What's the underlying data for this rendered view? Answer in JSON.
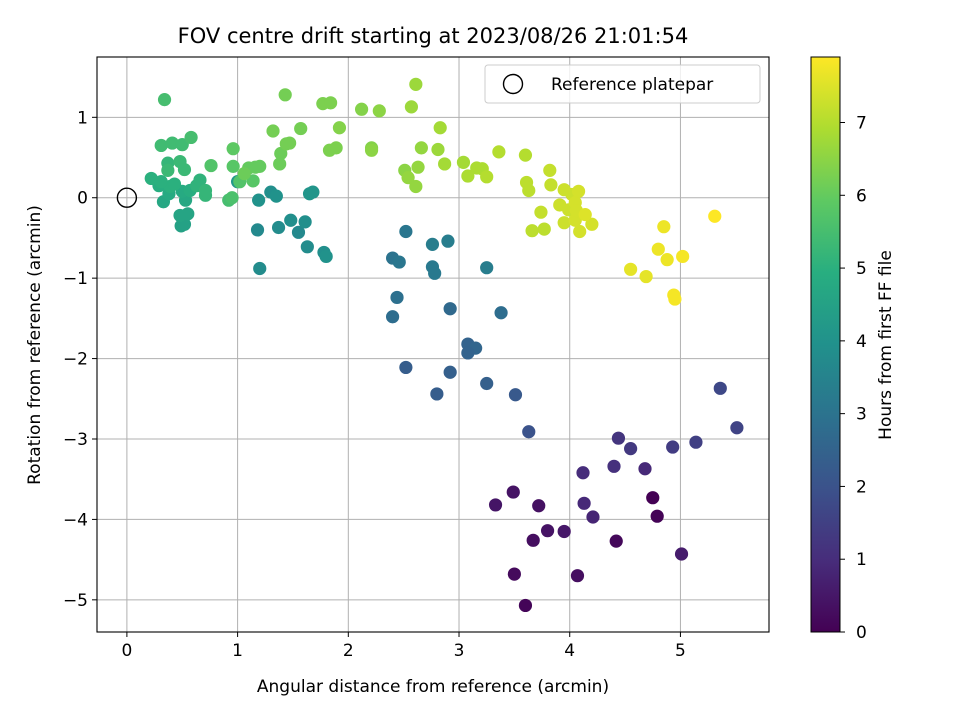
{
  "chart_data": {
    "type": "scatter",
    "title": "FOV centre drift starting at 2023/08/26 21:01:54",
    "xlabel": "Angular distance from reference (arcmin)",
    "ylabel": "Rotation from reference (arcmin)",
    "xlim": [
      -0.27,
      5.8
    ],
    "ylim": [
      -5.4,
      1.75
    ],
    "xticks": [
      "0",
      "1",
      "2",
      "3",
      "4",
      "5"
    ],
    "yticks": [
      "1",
      "0",
      "−1",
      "−2",
      "−3",
      "−4",
      "−5"
    ],
    "grid": true,
    "legend": {
      "position": "top-right",
      "entries": [
        "Reference platepar"
      ]
    },
    "reference_point": {
      "x": 0,
      "y": 0
    },
    "colorbar": {
      "label": "Hours from first FF file",
      "colormap": "viridis",
      "range": [
        0,
        7.9
      ],
      "ticks": [
        "0",
        "1",
        "2",
        "3",
        "4",
        "5",
        "6",
        "7"
      ]
    },
    "points": [
      {
        "x": 3.6,
        "y": -5.07,
        "h": 0.1
      },
      {
        "x": 3.5,
        "y": -4.68,
        "h": 0.2
      },
      {
        "x": 4.07,
        "y": -4.7,
        "h": 0.3
      },
      {
        "x": 4.42,
        "y": -4.27,
        "h": 0.15
      },
      {
        "x": 4.79,
        "y": -3.96,
        "h": 0.05
      },
      {
        "x": 4.75,
        "y": -3.73,
        "h": 0.0
      },
      {
        "x": 3.67,
        "y": -4.26,
        "h": 0.3
      },
      {
        "x": 3.8,
        "y": -4.14,
        "h": 0.4
      },
      {
        "x": 3.95,
        "y": -4.15,
        "h": 0.5
      },
      {
        "x": 3.33,
        "y": -3.82,
        "h": 0.45
      },
      {
        "x": 3.49,
        "y": -3.66,
        "h": 0.4
      },
      {
        "x": 3.72,
        "y": -3.83,
        "h": 0.35
      },
      {
        "x": 5.01,
        "y": -4.43,
        "h": 0.6
      },
      {
        "x": 4.21,
        "y": -3.97,
        "h": 0.8
      },
      {
        "x": 4.13,
        "y": -3.8,
        "h": 0.9
      },
      {
        "x": 4.12,
        "y": -3.42,
        "h": 1.0
      },
      {
        "x": 4.4,
        "y": -3.34,
        "h": 1.1
      },
      {
        "x": 4.68,
        "y": -3.37,
        "h": 0.9
      },
      {
        "x": 4.44,
        "y": -2.99,
        "h": 1.2
      },
      {
        "x": 4.55,
        "y": -3.12,
        "h": 1.3
      },
      {
        "x": 4.93,
        "y": -3.1,
        "h": 1.4
      },
      {
        "x": 5.14,
        "y": -3.04,
        "h": 1.5
      },
      {
        "x": 5.51,
        "y": -2.86,
        "h": 1.6
      },
      {
        "x": 5.36,
        "y": -2.37,
        "h": 1.7
      },
      {
        "x": 3.63,
        "y": -2.91,
        "h": 2.0
      },
      {
        "x": 3.51,
        "y": -2.45,
        "h": 2.2
      },
      {
        "x": 3.25,
        "y": -2.31,
        "h": 2.4
      },
      {
        "x": 2.8,
        "y": -2.44,
        "h": 2.3
      },
      {
        "x": 2.92,
        "y": -2.17,
        "h": 2.4
      },
      {
        "x": 2.52,
        "y": -2.11,
        "h": 2.3
      },
      {
        "x": 3.08,
        "y": -1.82,
        "h": 2.5
      },
      {
        "x": 3.15,
        "y": -1.87,
        "h": 2.6
      },
      {
        "x": 3.08,
        "y": -1.93,
        "h": 2.5
      },
      {
        "x": 2.92,
        "y": -1.38,
        "h": 2.7
      },
      {
        "x": 3.38,
        "y": -1.43,
        "h": 2.8
      },
      {
        "x": 2.4,
        "y": -1.48,
        "h": 2.8
      },
      {
        "x": 2.44,
        "y": -1.24,
        "h": 2.9
      },
      {
        "x": 2.4,
        "y": -0.75,
        "h": 3.0
      },
      {
        "x": 2.46,
        "y": -0.8,
        "h": 3.1
      },
      {
        "x": 2.52,
        "y": -0.42,
        "h": 3.1
      },
      {
        "x": 2.76,
        "y": -0.86,
        "h": 3.2
      },
      {
        "x": 2.78,
        "y": -0.94,
        "h": 3.2
      },
      {
        "x": 2.76,
        "y": -0.58,
        "h": 3.3
      },
      {
        "x": 2.9,
        "y": -0.54,
        "h": 3.3
      },
      {
        "x": 3.25,
        "y": -0.87,
        "h": 3.3
      },
      {
        "x": 1.2,
        "y": -0.88,
        "h": 3.8
      },
      {
        "x": 1.18,
        "y": -0.4,
        "h": 3.7
      },
      {
        "x": 1.78,
        "y": -0.68,
        "h": 3.9
      },
      {
        "x": 1.8,
        "y": -0.73,
        "h": 4.0
      },
      {
        "x": 1.63,
        "y": -0.61,
        "h": 3.8
      },
      {
        "x": 1.55,
        "y": -0.43,
        "h": 3.7
      },
      {
        "x": 1.37,
        "y": -0.37,
        "h": 3.8
      },
      {
        "x": 1.48,
        "y": -0.28,
        "h": 3.9
      },
      {
        "x": 1.61,
        "y": -0.3,
        "h": 3.9
      },
      {
        "x": 1.3,
        "y": 0.07,
        "h": 3.9
      },
      {
        "x": 1.35,
        "y": 0.02,
        "h": 4.0
      },
      {
        "x": 1.19,
        "y": -0.03,
        "h": 4.0
      },
      {
        "x": 1.65,
        "y": 0.05,
        "h": 4.1
      },
      {
        "x": 1.68,
        "y": 0.07,
        "h": 4.1
      },
      {
        "x": 1.0,
        "y": 0.2,
        "h": 4.2
      },
      {
        "x": 0.49,
        "y": -0.35,
        "h": 4.5
      },
      {
        "x": 0.52,
        "y": -0.33,
        "h": 4.5
      },
      {
        "x": 0.48,
        "y": -0.22,
        "h": 4.6
      },
      {
        "x": 0.55,
        "y": -0.2,
        "h": 4.6
      },
      {
        "x": 0.33,
        "y": -0.05,
        "h": 4.7
      },
      {
        "x": 0.53,
        "y": -0.03,
        "h": 4.7
      },
      {
        "x": 0.38,
        "y": 0.05,
        "h": 4.8
      },
      {
        "x": 0.5,
        "y": 0.08,
        "h": 4.8
      },
      {
        "x": 0.57,
        "y": 0.09,
        "h": 4.9
      },
      {
        "x": 0.29,
        "y": 0.15,
        "h": 4.9
      },
      {
        "x": 0.39,
        "y": 0.14,
        "h": 5.0
      },
      {
        "x": 0.22,
        "y": 0.24,
        "h": 5.0
      },
      {
        "x": 0.31,
        "y": 0.2,
        "h": 5.0
      },
      {
        "x": 0.43,
        "y": 0.17,
        "h": 5.0
      },
      {
        "x": 0.63,
        "y": 0.15,
        "h": 5.1
      },
      {
        "x": 0.66,
        "y": 0.22,
        "h": 5.1
      },
      {
        "x": 0.71,
        "y": 0.03,
        "h": 5.2
      },
      {
        "x": 0.71,
        "y": 0.09,
        "h": 5.2
      },
      {
        "x": 0.37,
        "y": 0.43,
        "h": 5.2
      },
      {
        "x": 0.48,
        "y": 0.45,
        "h": 5.3
      },
      {
        "x": 0.52,
        "y": 0.35,
        "h": 5.3
      },
      {
        "x": 0.37,
        "y": 0.34,
        "h": 5.3
      },
      {
        "x": 0.31,
        "y": 0.65,
        "h": 5.4
      },
      {
        "x": 0.41,
        "y": 0.68,
        "h": 5.4
      },
      {
        "x": 0.5,
        "y": 0.66,
        "h": 5.4
      },
      {
        "x": 0.58,
        "y": 0.75,
        "h": 5.5
      },
      {
        "x": 0.34,
        "y": 1.22,
        "h": 5.5
      },
      {
        "x": 0.92,
        "y": -0.03,
        "h": 5.5
      },
      {
        "x": 0.95,
        "y": 0.0,
        "h": 5.6
      },
      {
        "x": 1.02,
        "y": 0.2,
        "h": 5.7
      },
      {
        "x": 1.14,
        "y": 0.21,
        "h": 5.8
      },
      {
        "x": 0.96,
        "y": 0.39,
        "h": 5.8
      },
      {
        "x": 0.96,
        "y": 0.61,
        "h": 5.9
      },
      {
        "x": 1.1,
        "y": 0.37,
        "h": 6.0
      },
      {
        "x": 1.16,
        "y": 0.38,
        "h": 6.0
      },
      {
        "x": 1.2,
        "y": 0.39,
        "h": 6.0
      },
      {
        "x": 1.06,
        "y": 0.3,
        "h": 6.1
      },
      {
        "x": 0.76,
        "y": 0.4,
        "h": 5.7
      },
      {
        "x": 1.38,
        "y": 0.42,
        "h": 6.1
      },
      {
        "x": 1.39,
        "y": 0.55,
        "h": 6.1
      },
      {
        "x": 1.44,
        "y": 0.67,
        "h": 6.2
      },
      {
        "x": 1.47,
        "y": 0.68,
        "h": 6.2
      },
      {
        "x": 1.57,
        "y": 0.86,
        "h": 6.2
      },
      {
        "x": 1.32,
        "y": 0.83,
        "h": 6.2
      },
      {
        "x": 1.43,
        "y": 1.28,
        "h": 6.2
      },
      {
        "x": 1.77,
        "y": 1.17,
        "h": 6.3
      },
      {
        "x": 1.84,
        "y": 1.18,
        "h": 6.3
      },
      {
        "x": 1.83,
        "y": 0.59,
        "h": 6.3
      },
      {
        "x": 1.89,
        "y": 0.62,
        "h": 6.3
      },
      {
        "x": 1.92,
        "y": 0.87,
        "h": 6.4
      },
      {
        "x": 2.12,
        "y": 1.1,
        "h": 6.4
      },
      {
        "x": 2.21,
        "y": 0.62,
        "h": 6.4
      },
      {
        "x": 2.28,
        "y": 1.08,
        "h": 6.5
      },
      {
        "x": 2.21,
        "y": 0.59,
        "h": 6.5
      },
      {
        "x": 2.51,
        "y": 0.34,
        "h": 6.5
      },
      {
        "x": 2.54,
        "y": 0.25,
        "h": 6.6
      },
      {
        "x": 2.61,
        "y": 0.14,
        "h": 6.6
      },
      {
        "x": 2.63,
        "y": 0.38,
        "h": 6.6
      },
      {
        "x": 2.66,
        "y": 0.62,
        "h": 6.6
      },
      {
        "x": 2.57,
        "y": 1.13,
        "h": 6.7
      },
      {
        "x": 2.61,
        "y": 1.41,
        "h": 6.7
      },
      {
        "x": 2.81,
        "y": 0.6,
        "h": 6.7
      },
      {
        "x": 2.83,
        "y": 0.87,
        "h": 6.8
      },
      {
        "x": 2.87,
        "y": 0.42,
        "h": 6.8
      },
      {
        "x": 3.04,
        "y": 0.44,
        "h": 6.8
      },
      {
        "x": 3.08,
        "y": 0.27,
        "h": 6.9
      },
      {
        "x": 3.16,
        "y": 0.37,
        "h": 6.9
      },
      {
        "x": 3.21,
        "y": 0.36,
        "h": 6.9
      },
      {
        "x": 3.25,
        "y": 0.26,
        "h": 7.0
      },
      {
        "x": 3.36,
        "y": 0.57,
        "h": 7.0
      },
      {
        "x": 3.6,
        "y": 0.53,
        "h": 7.0
      },
      {
        "x": 3.61,
        "y": 0.19,
        "h": 7.1
      },
      {
        "x": 3.63,
        "y": 0.09,
        "h": 7.1
      },
      {
        "x": 3.66,
        "y": -0.41,
        "h": 7.1
      },
      {
        "x": 3.77,
        "y": -0.39,
        "h": 7.1
      },
      {
        "x": 3.74,
        "y": -0.18,
        "h": 7.2
      },
      {
        "x": 3.83,
        "y": 0.16,
        "h": 7.2
      },
      {
        "x": 3.82,
        "y": 0.34,
        "h": 7.2
      },
      {
        "x": 3.91,
        "y": -0.09,
        "h": 7.3
      },
      {
        "x": 3.95,
        "y": 0.1,
        "h": 7.3
      },
      {
        "x": 3.95,
        "y": -0.31,
        "h": 7.3
      },
      {
        "x": 3.99,
        "y": -0.15,
        "h": 7.3
      },
      {
        "x": 4.02,
        "y": 0.04,
        "h": 7.3
      },
      {
        "x": 4.05,
        "y": -0.06,
        "h": 7.4
      },
      {
        "x": 4.05,
        "y": -0.28,
        "h": 7.4
      },
      {
        "x": 4.06,
        "y": -0.16,
        "h": 7.4
      },
      {
        "x": 4.08,
        "y": 0.08,
        "h": 7.4
      },
      {
        "x": 4.09,
        "y": -0.42,
        "h": 7.4
      },
      {
        "x": 4.2,
        "y": -0.33,
        "h": 7.4
      },
      {
        "x": 4.14,
        "y": -0.21,
        "h": 7.5
      },
      {
        "x": 4.55,
        "y": -0.89,
        "h": 7.6
      },
      {
        "x": 4.69,
        "y": -0.98,
        "h": 7.6
      },
      {
        "x": 4.8,
        "y": -0.64,
        "h": 7.7
      },
      {
        "x": 4.85,
        "y": -0.36,
        "h": 7.7
      },
      {
        "x": 4.88,
        "y": -0.77,
        "h": 7.7
      },
      {
        "x": 4.94,
        "y": -1.21,
        "h": 7.8
      },
      {
        "x": 4.95,
        "y": -1.26,
        "h": 7.8
      },
      {
        "x": 5.02,
        "y": -0.73,
        "h": 7.8
      },
      {
        "x": 5.31,
        "y": -0.23,
        "h": 7.9
      }
    ]
  }
}
